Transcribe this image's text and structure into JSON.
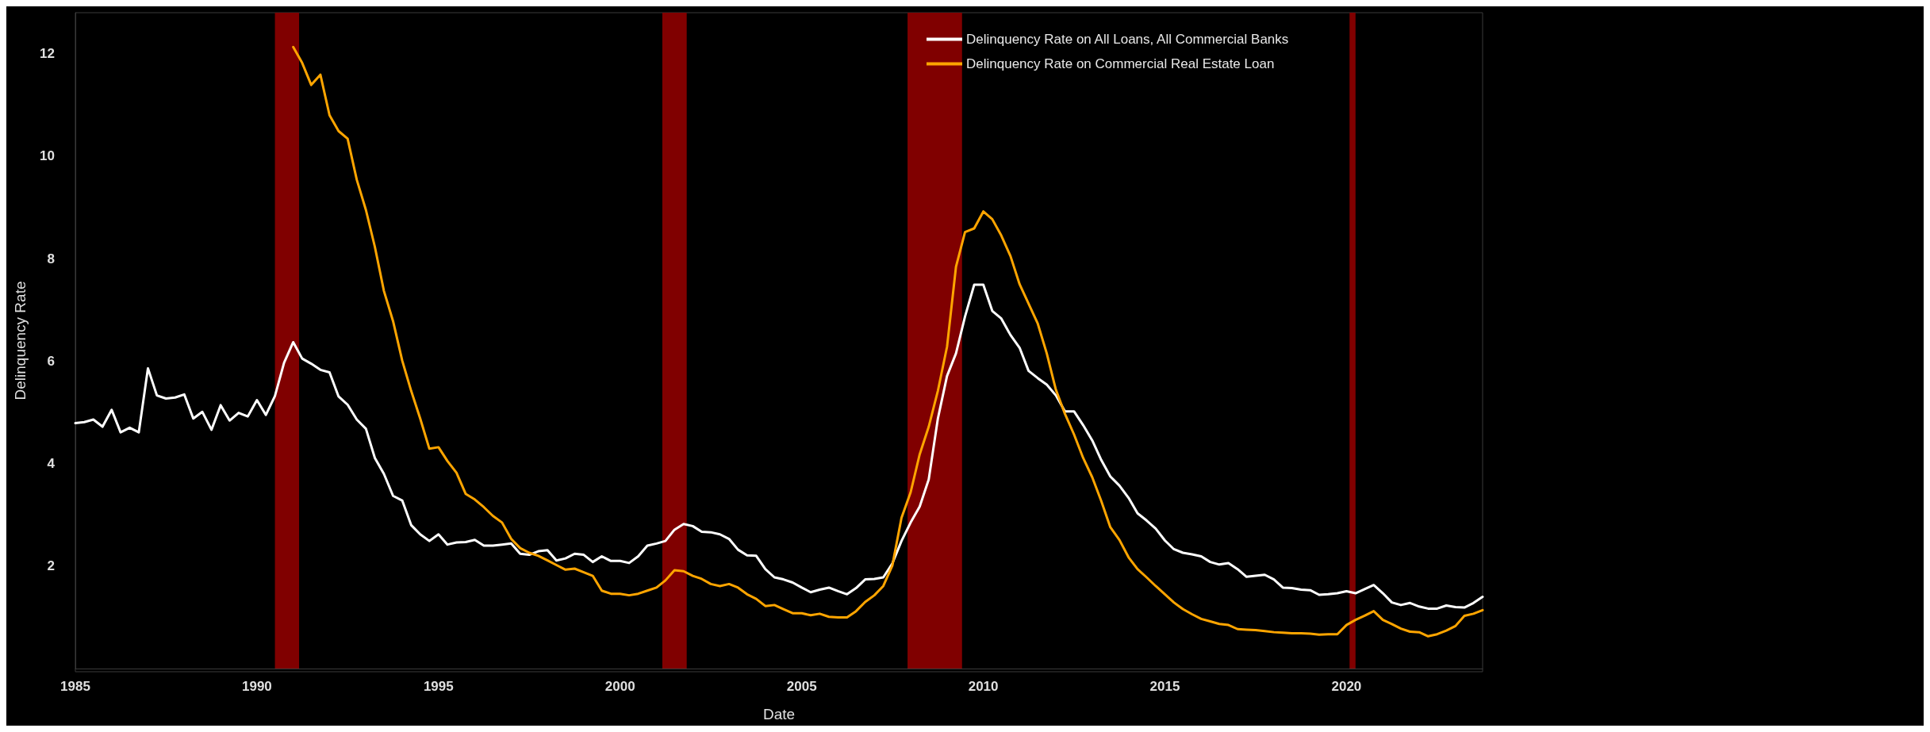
{
  "chart_data": {
    "type": "line",
    "xlabel": "Date",
    "ylabel": "Delinquency Rate",
    "legend": "top right",
    "grid": false,
    "marker": "none",
    "line_style": "solid",
    "xlim": [
      "1985-01",
      "2023-10"
    ],
    "xticks": [
      {
        "value": "1985",
        "label": "1985"
      },
      {
        "value": "1990",
        "label": "1990"
      },
      {
        "value": "1995",
        "label": "1995"
      },
      {
        "value": "2000",
        "label": "2000"
      },
      {
        "value": "2005",
        "label": "2005"
      },
      {
        "value": "2010",
        "label": "2010"
      },
      {
        "value": "2015",
        "label": "2015"
      },
      {
        "value": "2020",
        "label": "2020"
      }
    ],
    "ylim": [
      0,
      12.8
    ],
    "yticks": [
      2,
      4,
      6,
      8,
      10,
      12
    ],
    "bands": [
      {
        "axis": "x",
        "from": "1990-07",
        "to": "1991-03",
        "color": "#800000"
      },
      {
        "axis": "x",
        "from": "2001-03",
        "to": "2001-11",
        "color": "#800000"
      },
      {
        "axis": "x",
        "from": "2007-12",
        "to": "2009-06",
        "color": "#800000"
      },
      {
        "axis": "x",
        "from": "2020-02",
        "to": "2020-04",
        "color": "#800000"
      }
    ],
    "x": [
      "1985-01",
      "1985-04",
      "1985-07",
      "1985-10",
      "1986-01",
      "1986-04",
      "1986-07",
      "1986-10",
      "1987-01",
      "1987-04",
      "1987-07",
      "1987-10",
      "1988-01",
      "1988-04",
      "1988-07",
      "1988-10",
      "1989-01",
      "1989-04",
      "1989-07",
      "1989-10",
      "1990-01",
      "1990-04",
      "1990-07",
      "1990-10",
      "1991-01",
      "1991-04",
      "1991-07",
      "1991-10",
      "1992-01",
      "1992-04",
      "1992-07",
      "1992-10",
      "1993-01",
      "1993-04",
      "1993-07",
      "1993-10",
      "1994-01",
      "1994-04",
      "1994-07",
      "1994-10",
      "1995-01",
      "1995-04",
      "1995-07",
      "1995-10",
      "1996-01",
      "1996-04",
      "1996-07",
      "1996-10",
      "1997-01",
      "1997-04",
      "1997-07",
      "1997-10",
      "1998-01",
      "1998-04",
      "1998-07",
      "1998-10",
      "1999-01",
      "1999-04",
      "1999-07",
      "1999-10",
      "2000-01",
      "2000-04",
      "2000-07",
      "2000-10",
      "2001-01",
      "2001-04",
      "2001-07",
      "2001-10",
      "2002-01",
      "2002-04",
      "2002-07",
      "2002-10",
      "2003-01",
      "2003-04",
      "2003-07",
      "2003-10",
      "2004-01",
      "2004-04",
      "2004-07",
      "2004-10",
      "2005-01",
      "2005-04",
      "2005-07",
      "2005-10",
      "2006-01",
      "2006-04",
      "2006-07",
      "2006-10",
      "2007-01",
      "2007-04",
      "2007-07",
      "2007-10",
      "2008-01",
      "2008-04",
      "2008-07",
      "2008-10",
      "2009-01",
      "2009-04",
      "2009-07",
      "2009-10",
      "2010-01",
      "2010-04",
      "2010-07",
      "2010-10",
      "2011-01",
      "2011-04",
      "2011-07",
      "2011-10",
      "2012-01",
      "2012-04",
      "2012-07",
      "2012-10",
      "2013-01",
      "2013-04",
      "2013-07",
      "2013-10",
      "2014-01",
      "2014-04",
      "2014-07",
      "2014-10",
      "2015-01",
      "2015-04",
      "2015-07",
      "2015-10",
      "2016-01",
      "2016-04",
      "2016-07",
      "2016-10",
      "2017-01",
      "2017-04",
      "2017-07",
      "2017-10",
      "2018-01",
      "2018-04",
      "2018-07",
      "2018-10",
      "2019-01",
      "2019-04",
      "2019-07",
      "2019-10",
      "2020-01",
      "2020-04",
      "2020-07",
      "2020-10",
      "2021-01",
      "2021-04",
      "2021-07",
      "2021-10",
      "2022-01",
      "2022-04",
      "2022-07",
      "2022-10",
      "2023-01",
      "2023-04",
      "2023-07",
      "2023-10"
    ],
    "series": [
      {
        "name": "Delinquency Rate on All Loans, All Commercial Banks",
        "color": "#ffffff",
        "values": [
          4.79,
          4.81,
          4.86,
          4.72,
          5.05,
          4.61,
          4.7,
          4.61,
          5.86,
          5.33,
          5.27,
          5.29,
          5.35,
          4.88,
          5.01,
          4.66,
          5.14,
          4.84,
          4.99,
          4.92,
          5.24,
          4.95,
          5.32,
          5.97,
          6.37,
          6.05,
          5.95,
          5.83,
          5.78,
          5.31,
          5.15,
          4.86,
          4.68,
          4.11,
          3.8,
          3.37,
          3.28,
          2.8,
          2.62,
          2.49,
          2.62,
          2.42,
          2.46,
          2.47,
          2.51,
          2.4,
          2.4,
          2.42,
          2.44,
          2.24,
          2.22,
          2.29,
          2.31,
          2.11,
          2.15,
          2.24,
          2.22,
          2.08,
          2.19,
          2.1,
          2.1,
          2.06,
          2.19,
          2.4,
          2.44,
          2.49,
          2.71,
          2.82,
          2.78,
          2.67,
          2.66,
          2.62,
          2.53,
          2.32,
          2.21,
          2.2,
          1.94,
          1.78,
          1.74,
          1.68,
          1.58,
          1.49,
          1.54,
          1.58,
          1.51,
          1.45,
          1.57,
          1.74,
          1.75,
          1.78,
          2.05,
          2.49,
          2.85,
          3.16,
          3.69,
          4.88,
          5.71,
          6.15,
          6.87,
          7.49,
          7.49,
          6.98,
          6.83,
          6.51,
          6.26,
          5.81,
          5.67,
          5.54,
          5.33,
          5.02,
          5.02,
          4.75,
          4.45,
          4.07,
          3.75,
          3.57,
          3.33,
          3.03,
          2.89,
          2.73,
          2.5,
          2.33,
          2.26,
          2.23,
          2.19,
          2.08,
          2.03,
          2.06,
          1.94,
          1.79,
          1.81,
          1.83,
          1.74,
          1.58,
          1.57,
          1.54,
          1.53,
          1.44,
          1.45,
          1.47,
          1.51,
          1.47,
          1.55,
          1.63,
          1.47,
          1.29,
          1.24,
          1.28,
          1.21,
          1.17,
          1.17,
          1.23,
          1.2,
          1.19,
          1.28,
          1.4
        ]
      },
      {
        "name": "Delinquency Rate on Commercial Real Estate Loan",
        "color": "#ffa500",
        "values": [
          null,
          null,
          null,
          null,
          null,
          null,
          null,
          null,
          null,
          null,
          null,
          null,
          null,
          null,
          null,
          null,
          null,
          null,
          null,
          null,
          null,
          null,
          null,
          null,
          12.13,
          11.82,
          11.39,
          11.59,
          10.8,
          10.49,
          10.34,
          9.54,
          8.95,
          8.23,
          7.37,
          6.78,
          6.01,
          5.42,
          4.88,
          4.29,
          4.32,
          4.05,
          3.82,
          3.41,
          3.3,
          3.15,
          2.98,
          2.85,
          2.53,
          2.35,
          2.26,
          2.2,
          2.11,
          2.02,
          1.93,
          1.95,
          1.88,
          1.81,
          1.52,
          1.46,
          1.46,
          1.43,
          1.46,
          1.52,
          1.58,
          1.72,
          1.92,
          1.9,
          1.81,
          1.75,
          1.65,
          1.61,
          1.65,
          1.58,
          1.45,
          1.36,
          1.22,
          1.24,
          1.16,
          1.08,
          1.08,
          1.04,
          1.07,
          1.01,
          1.0,
          1.0,
          1.12,
          1.3,
          1.43,
          1.61,
          2.01,
          2.94,
          3.44,
          4.18,
          4.72,
          5.42,
          6.28,
          7.84,
          8.52,
          8.59,
          8.92,
          8.77,
          8.45,
          8.05,
          7.5,
          7.12,
          6.74,
          6.15,
          5.44,
          4.97,
          4.57,
          4.11,
          3.73,
          3.27,
          2.76,
          2.51,
          2.17,
          1.94,
          1.78,
          1.61,
          1.45,
          1.29,
          1.16,
          1.06,
          0.97,
          0.92,
          0.87,
          0.85,
          0.77,
          0.76,
          0.75,
          0.73,
          0.71,
          0.7,
          0.69,
          0.69,
          0.68,
          0.66,
          0.67,
          0.67,
          0.85,
          0.95,
          1.03,
          1.12,
          0.95,
          0.87,
          0.78,
          0.72,
          0.71,
          0.63,
          0.67,
          0.74,
          0.83,
          1.03,
          1.07,
          1.14
        ]
      }
    ]
  }
}
